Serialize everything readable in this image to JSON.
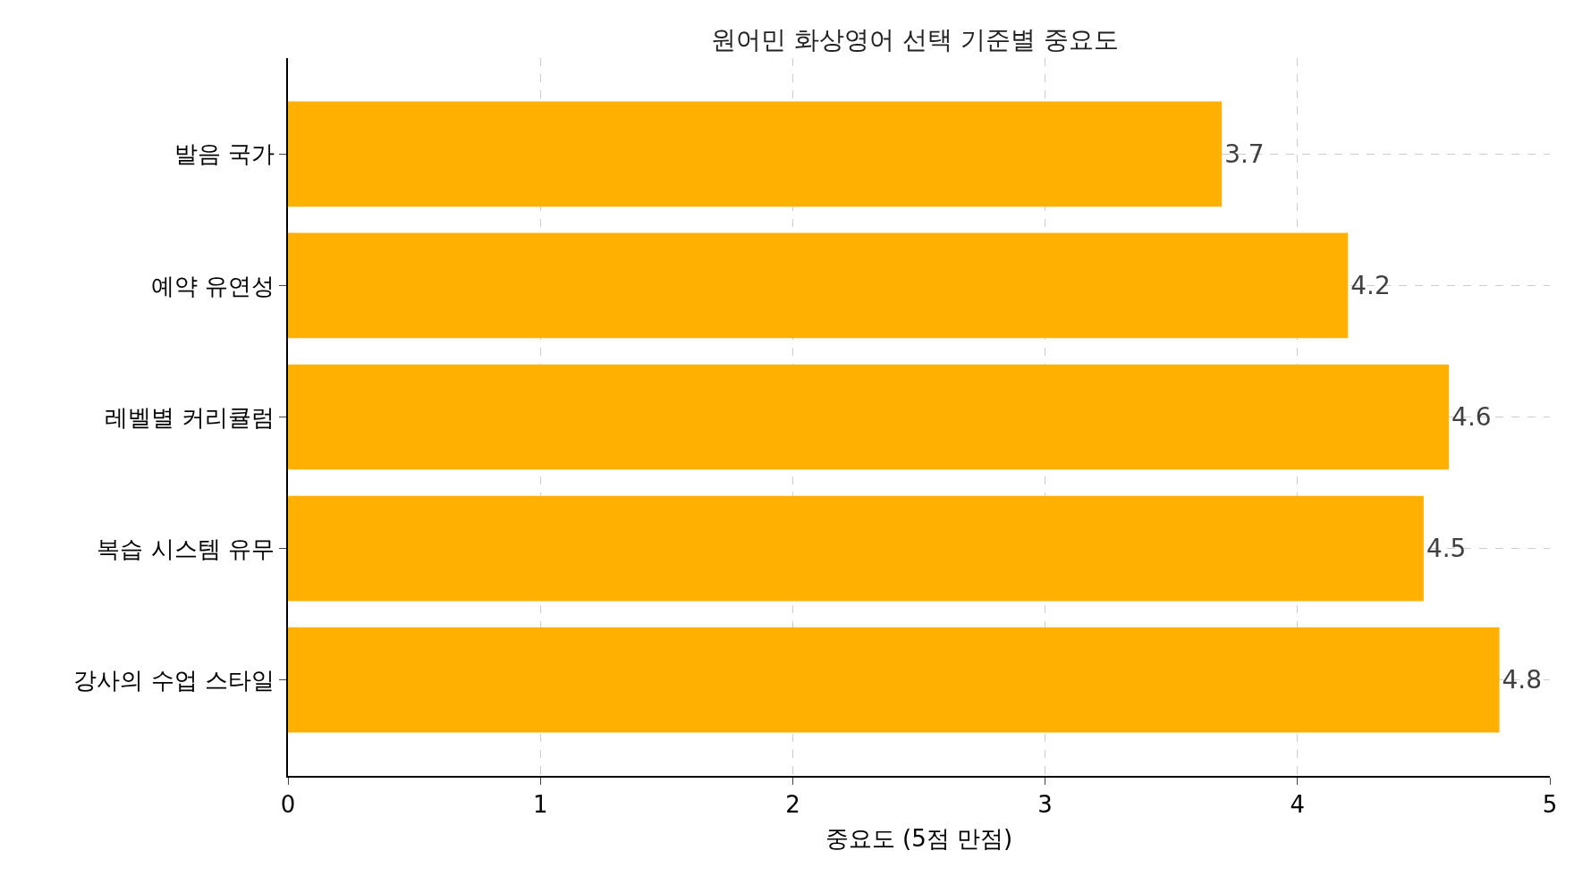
{
  "chart_data": {
    "type": "bar",
    "orientation": "horizontal",
    "title": "원어민 화상영어 선택 기준별 중요도",
    "xlabel": "중요도 (5점 만점)",
    "categories": [
      "발음 국가",
      "예약 유연성",
      "레벨별 커리큘럼",
      "복습 시스템 유무",
      "강사의 수업 스타일"
    ],
    "values": [
      3.7,
      4.2,
      4.6,
      4.5,
      4.8
    ],
    "color": "#ffb000",
    "xlim": [
      0,
      5
    ],
    "xticks": [
      0,
      1,
      2,
      3,
      4,
      5
    ],
    "grid": true,
    "data_labels": true
  }
}
